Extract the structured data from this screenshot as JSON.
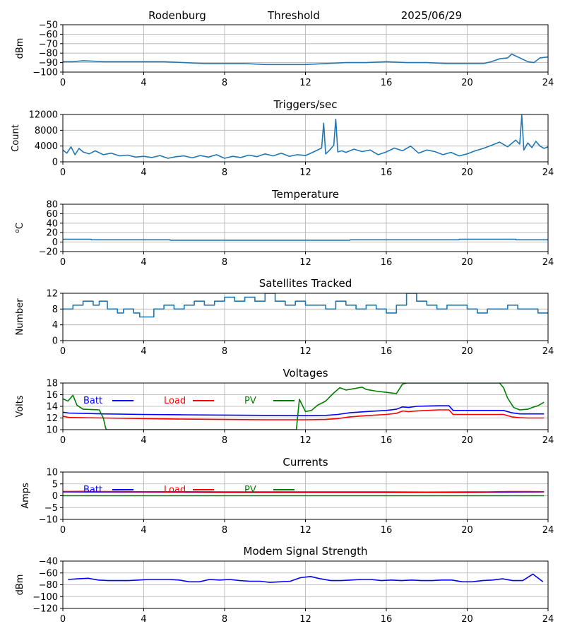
{
  "header": {
    "station": "Rodenburg",
    "mode": "Threshold",
    "date": "2025/06/29"
  },
  "chart_data": [
    {
      "id": "threshold",
      "type": "line",
      "title": "",
      "xlabel": "",
      "ylabel": "dBm",
      "xlim": [
        0,
        24
      ],
      "ylim": [
        -100,
        -50
      ],
      "xticks": [
        0,
        4,
        8,
        12,
        16,
        20,
        24
      ],
      "yticks": [
        -100,
        -90,
        -80,
        -70,
        -60,
        -50
      ],
      "grid": true,
      "series": [
        {
          "color": "#1f77b4",
          "x": [
            0,
            0.5,
            1,
            2,
            3,
            4,
            5,
            6,
            7,
            8,
            9,
            10,
            11,
            12,
            13,
            14,
            15,
            16,
            17,
            18,
            19,
            20,
            20.8,
            21.2,
            21.6,
            22,
            22.2,
            22.6,
            23,
            23.3,
            23.6,
            24
          ],
          "y": [
            -89,
            -89,
            -88,
            -89,
            -89,
            -89,
            -89,
            -90,
            -91,
            -91,
            -91,
            -92,
            -92,
            -92,
            -91,
            -90,
            -90,
            -89,
            -90,
            -90,
            -91,
            -91,
            -91,
            -89,
            -86,
            -85,
            -81,
            -85,
            -89,
            -90,
            -85,
            -84
          ]
        }
      ]
    },
    {
      "id": "triggers",
      "type": "line",
      "title": "Triggers/sec",
      "xlabel": "",
      "ylabel": "Count",
      "xlim": [
        0,
        24
      ],
      "ylim": [
        0,
        12000
      ],
      "xticks": [
        0,
        4,
        8,
        12,
        16,
        20,
        24
      ],
      "yticks": [
        0,
        4000,
        8000,
        12000
      ],
      "grid": true,
      "series": [
        {
          "color": "#1f77b4",
          "x": [
            0,
            0.2,
            0.4,
            0.6,
            0.8,
            1,
            1.3,
            1.6,
            2,
            2.4,
            2.8,
            3.2,
            3.6,
            4,
            4.4,
            4.8,
            5.2,
            5.6,
            6,
            6.4,
            6.8,
            7.2,
            7.6,
            8,
            8.4,
            8.8,
            9.2,
            9.6,
            10,
            10.4,
            10.8,
            11.2,
            11.6,
            12,
            12.4,
            12.8,
            12.9,
            13,
            13.2,
            13.4,
            13.5,
            13.6,
            13.8,
            14,
            14.4,
            14.8,
            15.2,
            15.6,
            16,
            16.4,
            16.8,
            17.2,
            17.6,
            18,
            18.4,
            18.8,
            19.2,
            19.6,
            20,
            20.4,
            20.8,
            21.2,
            21.6,
            22,
            22.4,
            22.6,
            22.7,
            22.8,
            23,
            23.2,
            23.4,
            23.6,
            23.8,
            24
          ],
          "y": [
            3000,
            2200,
            3800,
            1800,
            3400,
            2500,
            2000,
            2800,
            1800,
            2200,
            1500,
            1700,
            1200,
            1400,
            1100,
            1600,
            900,
            1300,
            1500,
            1000,
            1600,
            1200,
            1800,
            900,
            1400,
            1100,
            1700,
            1300,
            2000,
            1500,
            2200,
            1400,
            1800,
            1600,
            2500,
            3500,
            9800,
            2000,
            3000,
            4200,
            10800,
            2500,
            2800,
            2400,
            3200,
            2600,
            3000,
            1800,
            2500,
            3500,
            2800,
            4000,
            2200,
            3000,
            2600,
            1800,
            2400,
            1500,
            2000,
            2800,
            3400,
            4200,
            5000,
            3800,
            5500,
            4500,
            11800,
            3000,
            4800,
            3600,
            5200,
            4000,
            3400,
            3800
          ]
        }
      ]
    },
    {
      "id": "temperature",
      "type": "line",
      "title": "Temperature",
      "xlabel": "",
      "ylabel": "°C",
      "ylabel_super": "o",
      "ylabel_main": "C",
      "xlim": [
        0,
        24
      ],
      "ylim": [
        -20,
        80
      ],
      "xticks": [
        0,
        4,
        8,
        12,
        16,
        20,
        24
      ],
      "yticks": [
        -20,
        0,
        20,
        40,
        60,
        80
      ],
      "grid": true,
      "series": [
        {
          "color": "#1f77b4",
          "x": [
            0,
            1.4,
            1.41,
            5.3,
            5.31,
            14.2,
            14.21,
            19.6,
            19.61,
            22.4,
            22.41,
            24
          ],
          "y": [
            6,
            6,
            5,
            5,
            4,
            4,
            5,
            5,
            6,
            6,
            5,
            5
          ]
        }
      ]
    },
    {
      "id": "satellites",
      "type": "line",
      "title": "Satellites Tracked",
      "xlabel": "",
      "ylabel": "Number",
      "xlim": [
        0,
        24
      ],
      "ylim": [
        0,
        12
      ],
      "xticks": [
        0,
        4,
        8,
        12,
        16,
        20,
        24
      ],
      "yticks": [
        0,
        4,
        8,
        12
      ],
      "grid": true,
      "series": [
        {
          "color": "#1f77b4",
          "step": true,
          "x": [
            0,
            0.5,
            1,
            1.5,
            1.8,
            2.2,
            2.7,
            3,
            3.5,
            3.8,
            4.5,
            5,
            5.5,
            6,
            6.5,
            7,
            7.5,
            8,
            8.5,
            9,
            9.5,
            10,
            10.5,
            11,
            11.5,
            12,
            12.5,
            13,
            13.5,
            14,
            14.5,
            15,
            15.5,
            16,
            16.5,
            17,
            17.5,
            18,
            18.5,
            19,
            19.5,
            20,
            20.5,
            21,
            21.5,
            22,
            22.5,
            23,
            23.5,
            24
          ],
          "y": [
            8,
            9,
            10,
            9,
            10,
            8,
            7,
            8,
            7,
            6,
            8,
            9,
            8,
            9,
            10,
            9,
            10,
            11,
            10,
            11,
            10,
            12,
            10,
            9,
            10,
            9,
            9,
            8,
            10,
            9,
            8,
            9,
            8,
            7,
            9,
            12,
            10,
            9,
            8,
            9,
            9,
            8,
            7,
            8,
            8,
            9,
            8,
            8,
            7,
            7
          ]
        }
      ]
    },
    {
      "id": "voltages",
      "type": "line",
      "title": "Voltages",
      "xlabel": "",
      "ylabel": "Volts",
      "xlim": [
        0,
        24
      ],
      "ylim": [
        10,
        18
      ],
      "xticks": [
        0,
        4,
        8,
        12,
        16,
        20,
        24
      ],
      "yticks": [
        10,
        12,
        14,
        16,
        18
      ],
      "grid": true,
      "legend": "inside-top-left",
      "series": [
        {
          "name": "Batt",
          "color": "#0000ff",
          "x": [
            0,
            0.3,
            1,
            2,
            4,
            6,
            8,
            10,
            12,
            13,
            13.6,
            14.2,
            15,
            16,
            16.5,
            16.8,
            17.1,
            17.5,
            18,
            18.6,
            19.1,
            19.3,
            20,
            21,
            21.8,
            22.2,
            22.6,
            23,
            23.8
          ],
          "y": [
            13.0,
            12.85,
            12.8,
            12.7,
            12.6,
            12.55,
            12.5,
            12.45,
            12.4,
            12.45,
            12.6,
            12.9,
            13.1,
            13.3,
            13.5,
            13.9,
            13.8,
            14.0,
            14.05,
            14.1,
            14.1,
            13.3,
            13.3,
            13.3,
            13.3,
            12.9,
            12.7,
            12.7,
            12.7
          ]
        },
        {
          "name": "Load",
          "color": "#ff0000",
          "x": [
            0,
            0.3,
            1,
            2,
            4,
            6,
            8,
            10,
            12,
            13,
            13.6,
            14.2,
            15,
            16,
            16.5,
            16.8,
            17.1,
            17.5,
            18,
            18.6,
            19.1,
            19.3,
            20,
            21,
            21.8,
            22.2,
            22.6,
            23,
            23.8
          ],
          "y": [
            12.3,
            12.1,
            12.05,
            12.0,
            11.9,
            11.8,
            11.75,
            11.7,
            11.7,
            11.75,
            11.9,
            12.2,
            12.4,
            12.6,
            12.8,
            13.2,
            13.1,
            13.2,
            13.3,
            13.4,
            13.4,
            12.6,
            12.6,
            12.6,
            12.6,
            12.2,
            12.05,
            12.0,
            12.0
          ]
        },
        {
          "name": "PV",
          "color": "#008000",
          "x": [
            0,
            0.25,
            0.5,
            0.7,
            1,
            1.8,
            2.0,
            2.1,
            2.15,
            11.55,
            11.7,
            12.0,
            12.3,
            12.6,
            13.0,
            13.4,
            13.7,
            14.0,
            14.5,
            14.8,
            15.0,
            15.5,
            16.0,
            16.5,
            16.8,
            17.0,
            21.6,
            21.8,
            22.0,
            22.3,
            22.6,
            23.0,
            23.3,
            23.5,
            23.8
          ],
          "y": [
            15.3,
            14.9,
            15.9,
            14.2,
            13.5,
            13.4,
            12.0,
            10.5,
            10.0,
            10.0,
            15.2,
            13.1,
            13.3,
            14.2,
            14.9,
            16.3,
            17.2,
            16.8,
            17.1,
            17.3,
            16.9,
            16.6,
            16.4,
            16.2,
            17.8,
            18.0,
            18.0,
            17.2,
            15.4,
            13.8,
            13.4,
            13.5,
            13.9,
            14.1,
            14.7
          ]
        }
      ]
    },
    {
      "id": "currents",
      "type": "line",
      "title": "Currents",
      "xlabel": "",
      "ylabel": "Amps",
      "xlim": [
        0,
        24
      ],
      "ylim": [
        -10,
        10
      ],
      "xticks": [
        0,
        4,
        8,
        12,
        16,
        20,
        24
      ],
      "yticks": [
        -10,
        -5,
        0,
        5,
        10
      ],
      "grid": true,
      "legend": "inside-top-left",
      "series": [
        {
          "name": "Batt",
          "color": "#0000ff",
          "x": [
            0,
            4,
            8,
            12,
            16,
            20,
            23.8
          ],
          "y": [
            1.6,
            1.5,
            1.4,
            1.4,
            1.4,
            1.4,
            1.6
          ]
        },
        {
          "name": "Load",
          "color": "#ff0000",
          "x": [
            0,
            1,
            2,
            4,
            6,
            8,
            10,
            12,
            14,
            16,
            18,
            20,
            21,
            22,
            23,
            23.8
          ],
          "y": [
            1.8,
            1.85,
            1.8,
            1.7,
            1.7,
            1.6,
            1.6,
            1.6,
            1.6,
            1.6,
            1.55,
            1.6,
            1.65,
            1.8,
            1.75,
            1.7
          ]
        },
        {
          "name": "PV",
          "color": "#008000",
          "x": [
            0,
            23.8
          ],
          "y": [
            0,
            0
          ]
        }
      ]
    },
    {
      "id": "modem",
      "type": "line",
      "title": "Modem Signal Strength",
      "xlabel": "",
      "ylabel": "dBm",
      "xlim": [
        0,
        24
      ],
      "ylim": [
        -120,
        -40
      ],
      "xticks": [
        0,
        4,
        8,
        12,
        16,
        20,
        24
      ],
      "yticks": [
        -120,
        -100,
        -80,
        -60,
        -40
      ],
      "grid": true,
      "series": [
        {
          "color": "#0000ff",
          "x": [
            0.25,
            0.75,
            1.25,
            1.75,
            2.25,
            2.75,
            3.25,
            3.75,
            4.25,
            4.75,
            5.25,
            5.75,
            6.25,
            6.75,
            7.25,
            7.75,
            8.25,
            8.75,
            9.25,
            9.75,
            10.25,
            10.75,
            11.25,
            11.75,
            12.25,
            12.75,
            13.25,
            13.75,
            14.25,
            14.75,
            15.25,
            15.75,
            16.25,
            16.75,
            17.25,
            17.75,
            18.25,
            18.75,
            19.25,
            19.75,
            20.25,
            20.75,
            21.25,
            21.75,
            22.25,
            22.75,
            23.25,
            23.75
          ],
          "y": [
            -71,
            -70,
            -69,
            -72,
            -73,
            -73,
            -73,
            -72,
            -71,
            -71,
            -71,
            -72,
            -75,
            -75,
            -71,
            -72,
            -71,
            -73,
            -74,
            -74,
            -76,
            -75,
            -74,
            -68,
            -66,
            -70,
            -73,
            -73,
            -72,
            -71,
            -71,
            -73,
            -72,
            -73,
            -72,
            -73,
            -73,
            -72,
            -72,
            -75,
            -75,
            -73,
            -72,
            -70,
            -73,
            -73,
            -62,
            -75
          ]
        }
      ]
    }
  ]
}
